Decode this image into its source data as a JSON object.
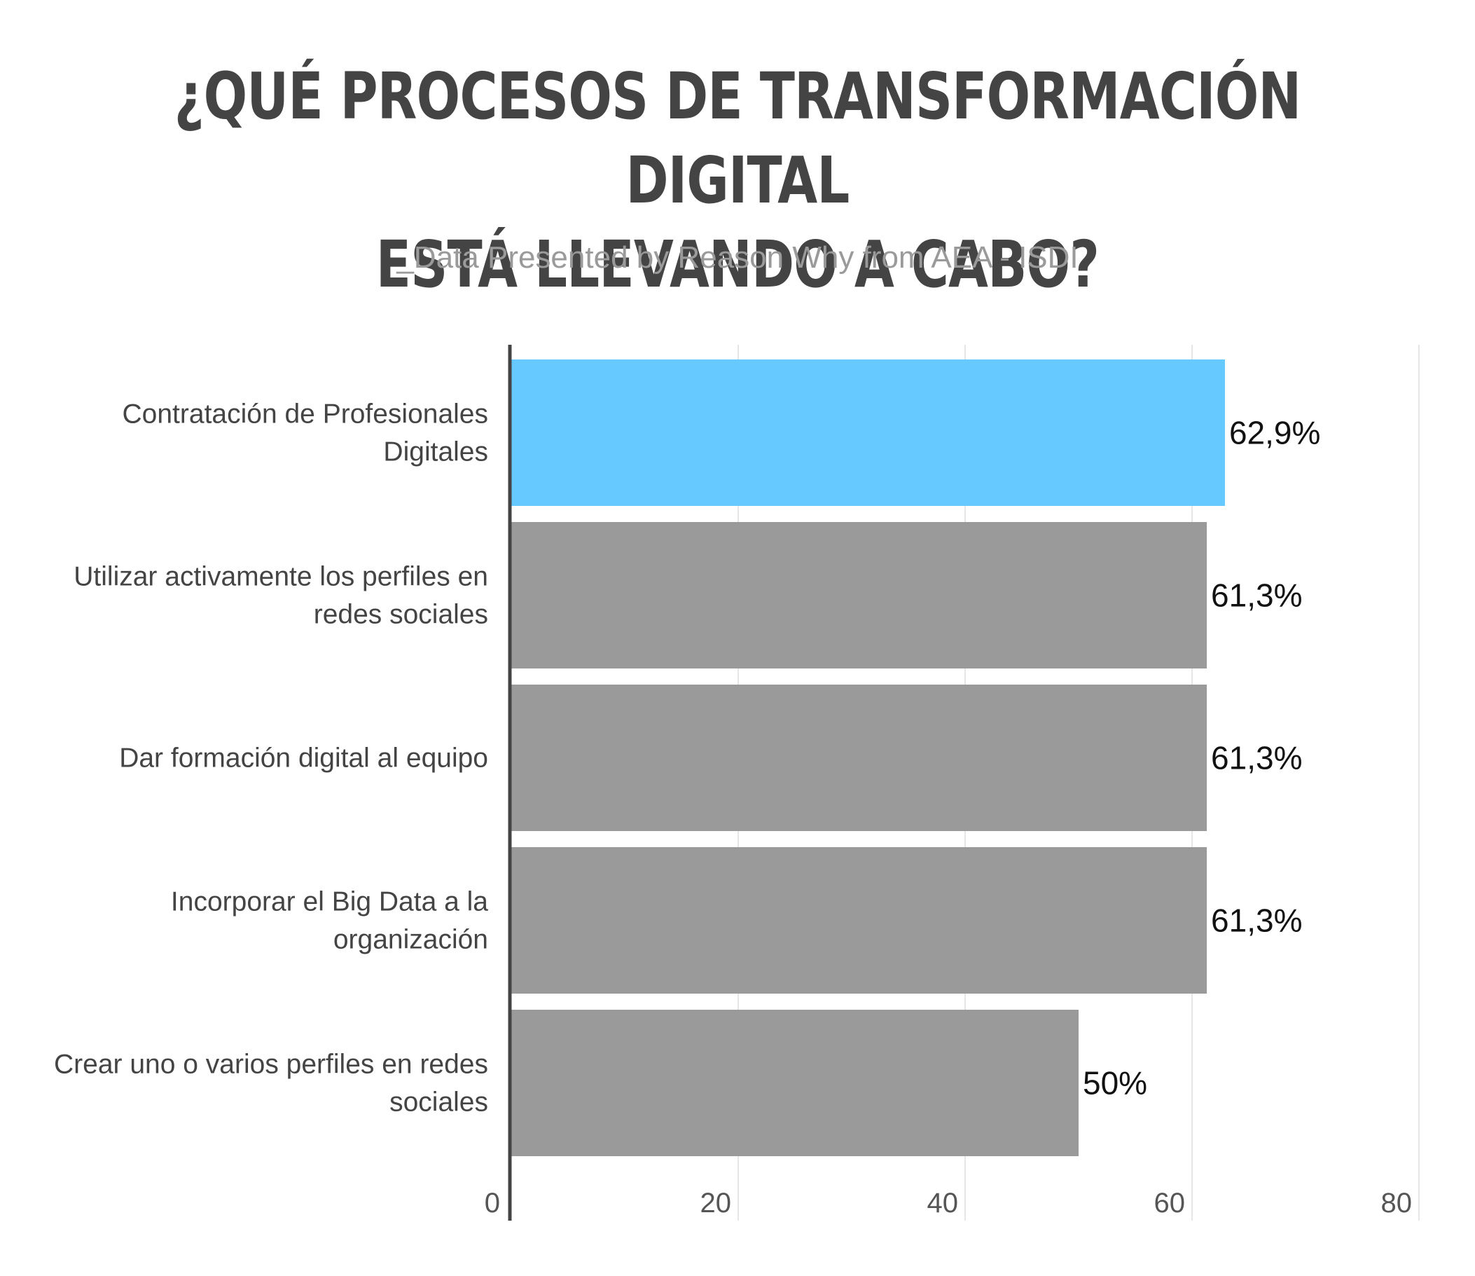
{
  "header": {
    "title_line1": "¿QUÉ PROCESOS DE TRANSFORMACIÓN DIGITAL",
    "title_line2": "ESTÁ LLEVANDO A CABO?",
    "subtitle": "_Data Presented by Reason Why from AEA - ISDI"
  },
  "chart_data": {
    "type": "bar",
    "orientation": "horizontal",
    "title": "¿QUÉ PROCESOS DE TRANSFORMACIÓN DIGITAL ESTÁ LLEVANDO A CABO?",
    "subtitle": "_Data Presented by Reason Why from AEA - ISDI",
    "categories": [
      [
        "Contratación de Profesionales",
        "Digitales"
      ],
      [
        "Utilizar activamente los perfiles en",
        "redes sociales"
      ],
      [
        "Dar formación digital al equipo"
      ],
      [
        "Incorporar el Big Data a la",
        "organización"
      ],
      [
        "Crear uno o varios perfiles en redes",
        "sociales"
      ]
    ],
    "values": [
      62.9,
      61.3,
      61.3,
      61.3,
      50
    ],
    "value_labels": [
      "62,9%",
      "61,3%",
      "61,3%",
      "61,3%",
      "50%"
    ],
    "bar_colors": [
      "#66c9ff",
      "#9a9a9a",
      "#9a9a9a",
      "#9a9a9a",
      "#9a9a9a"
    ],
    "xlim": [
      0,
      80
    ],
    "xticks": [
      0,
      20,
      40,
      60,
      80
    ],
    "xlabel": "",
    "ylabel": "",
    "grid": true,
    "colors": {
      "axis": "#444444",
      "grid": "#e6e6e6"
    }
  }
}
